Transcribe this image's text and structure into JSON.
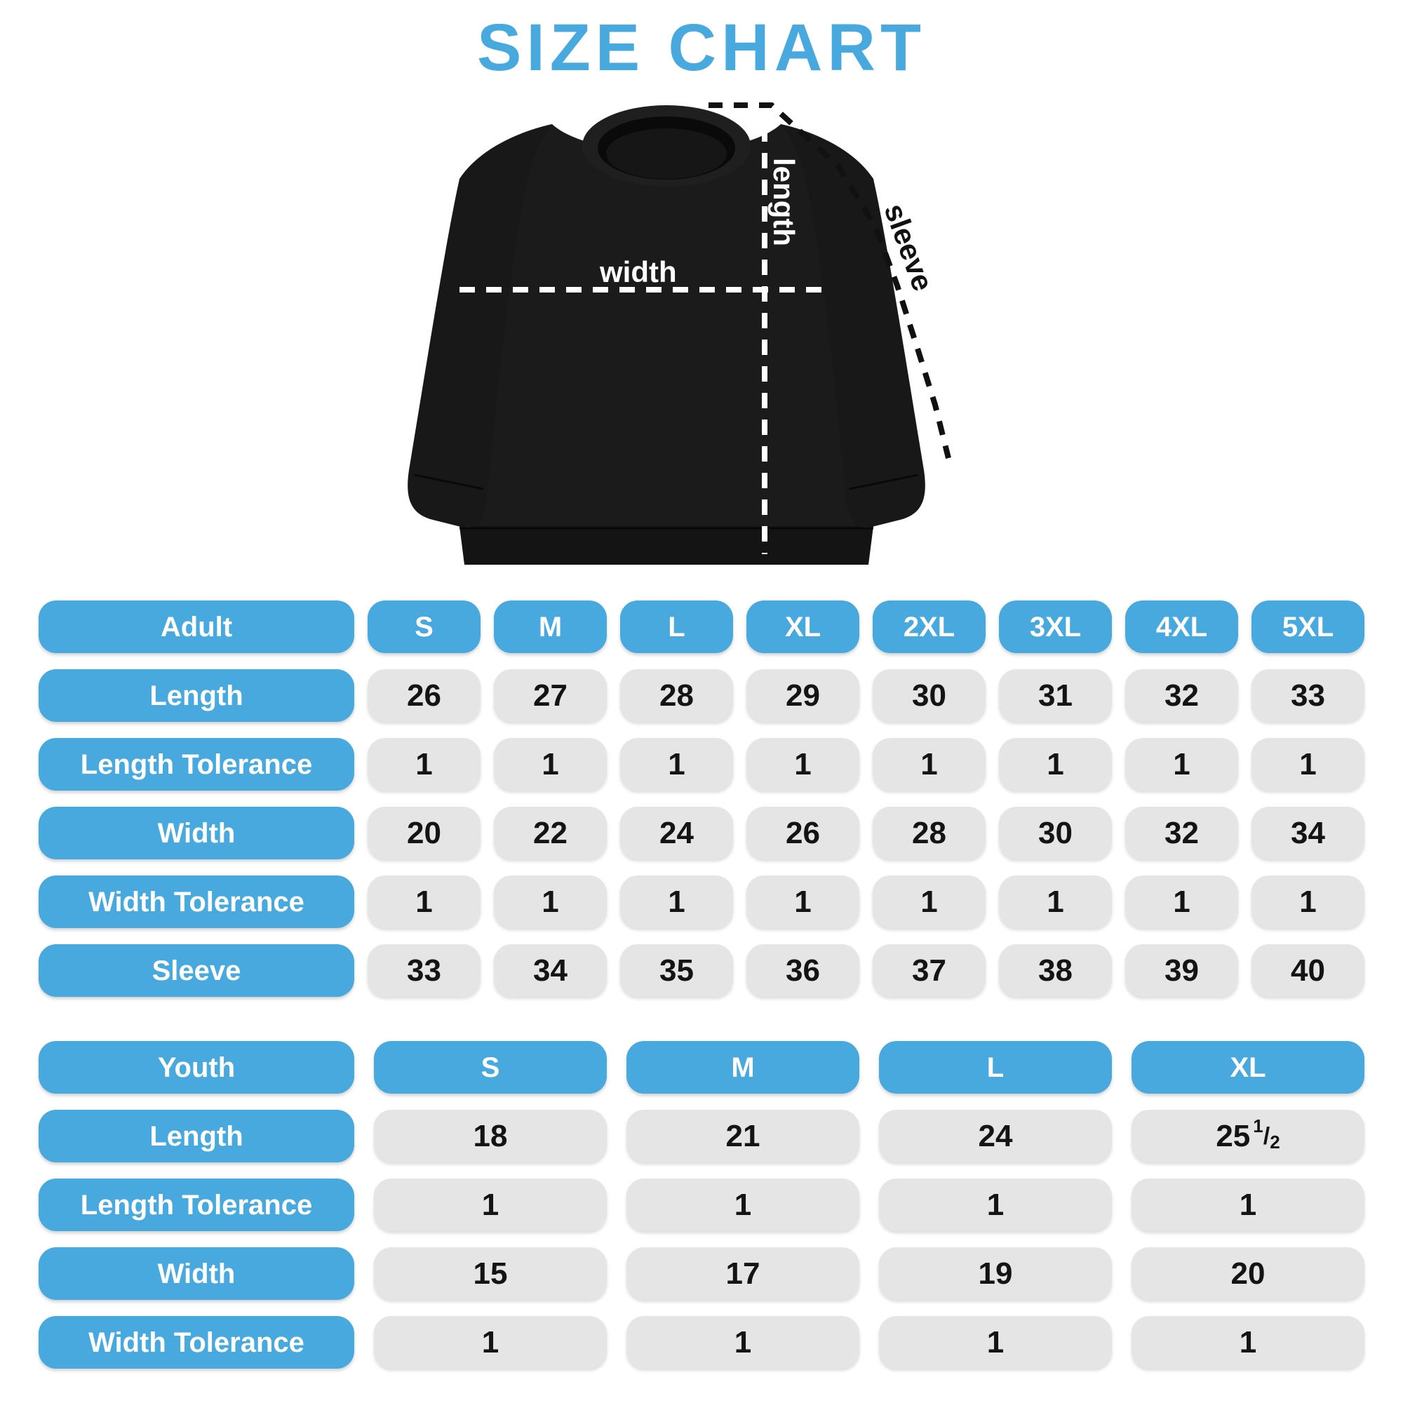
{
  "title": "SIZE CHART",
  "colors": {
    "accent_blue": "#47A9DE",
    "cell_gray": "#E5E5E6",
    "garment_black": "#1B1B1B",
    "value_text": "#141414"
  },
  "diagram": {
    "length_label": "length",
    "width_label": "width",
    "sleeve_label": "sleeve"
  },
  "adult_table": {
    "header": [
      "Adult",
      "S",
      "M",
      "L",
      "XL",
      "2XL",
      "3XL",
      "4XL",
      "5XL"
    ],
    "rows": [
      {
        "label": "Length",
        "values": [
          "26",
          "27",
          "28",
          "29",
          "30",
          "31",
          "32",
          "33"
        ]
      },
      {
        "label": "Length Tolerance",
        "values": [
          "1",
          "1",
          "1",
          "1",
          "1",
          "1",
          "1",
          "1"
        ]
      },
      {
        "label": "Width",
        "values": [
          "20",
          "22",
          "24",
          "26",
          "28",
          "30",
          "32",
          "34"
        ]
      },
      {
        "label": "Width Tolerance",
        "values": [
          "1",
          "1",
          "1",
          "1",
          "1",
          "1",
          "1",
          "1"
        ]
      },
      {
        "label": "Sleeve",
        "values": [
          "33",
          "34",
          "35",
          "36",
          "37",
          "38",
          "39",
          "40"
        ]
      }
    ]
  },
  "youth_table": {
    "header": [
      "Youth",
      "S",
      "M",
      "L",
      "XL"
    ],
    "rows": [
      {
        "label": "Length",
        "values": [
          "18",
          "21",
          "24",
          "25 1/2"
        ]
      },
      {
        "label": "Length Tolerance",
        "values": [
          "1",
          "1",
          "1",
          "1"
        ]
      },
      {
        "label": "Width",
        "values": [
          "15",
          "17",
          "19",
          "20"
        ]
      },
      {
        "label": "Width Tolerance",
        "values": [
          "1",
          "1",
          "1",
          "1"
        ]
      }
    ]
  },
  "chart_data": [
    {
      "type": "table",
      "title": "Adult sweatshirt sizes (inches)",
      "columns": [
        "S",
        "M",
        "L",
        "XL",
        "2XL",
        "3XL",
        "4XL",
        "5XL"
      ],
      "series": [
        {
          "name": "Length",
          "values": [
            26,
            27,
            28,
            29,
            30,
            31,
            32,
            33
          ]
        },
        {
          "name": "Length Tolerance",
          "values": [
            1,
            1,
            1,
            1,
            1,
            1,
            1,
            1
          ]
        },
        {
          "name": "Width",
          "values": [
            20,
            22,
            24,
            26,
            28,
            30,
            32,
            34
          ]
        },
        {
          "name": "Width Tolerance",
          "values": [
            1,
            1,
            1,
            1,
            1,
            1,
            1,
            1
          ]
        },
        {
          "name": "Sleeve",
          "values": [
            33,
            34,
            35,
            36,
            37,
            38,
            39,
            40
          ]
        }
      ]
    },
    {
      "type": "table",
      "title": "Youth sweatshirt sizes (inches)",
      "columns": [
        "S",
        "M",
        "L",
        "XL"
      ],
      "series": [
        {
          "name": "Length",
          "values": [
            18,
            21,
            24,
            25.5
          ]
        },
        {
          "name": "Length Tolerance",
          "values": [
            1,
            1,
            1,
            1
          ]
        },
        {
          "name": "Width",
          "values": [
            15,
            17,
            19,
            20
          ]
        },
        {
          "name": "Width Tolerance",
          "values": [
            1,
            1,
            1,
            1
          ]
        }
      ]
    }
  ]
}
